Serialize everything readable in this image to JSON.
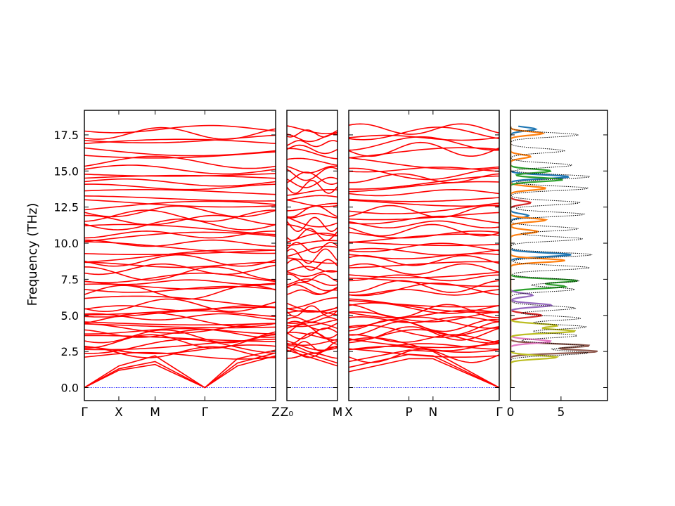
{
  "chart_data": {
    "type": "line",
    "ylabel": "Frequency (THz)",
    "ylim": [
      -0.9,
      19.2
    ],
    "yticks": [
      "0.0",
      "2.5",
      "5.0",
      "7.5",
      "10.0",
      "12.5",
      "15.0",
      "17.5"
    ],
    "band_color": "#ff0000",
    "zero_line_color": "#0000ff",
    "panels": [
      {
        "id": "panel1",
        "x_ticks": [
          {
            "label": "Γ",
            "pos": 0.0
          },
          {
            "label": "X",
            "pos": 0.18
          },
          {
            "label": "M",
            "pos": 0.37
          },
          {
            "label": "Γ",
            "pos": 0.63
          },
          {
            "label": "Z",
            "pos": 1.0
          }
        ],
        "acoustic_branches": [
          {
            "x": [
              0.0,
              0.18,
              0.37,
              0.63,
              0.8,
              1.0
            ],
            "y": [
              0.0,
              1.2,
              1.6,
              0.0,
              1.5,
              2.2
            ]
          },
          {
            "x": [
              0.0,
              0.18,
              0.37,
              0.63,
              0.8,
              1.0
            ],
            "y": [
              0.0,
              1.3,
              1.8,
              0.0,
              1.7,
              2.4
            ]
          },
          {
            "x": [
              0.0,
              0.18,
              0.37,
              0.63,
              0.8,
              1.0
            ],
            "y": [
              0.0,
              1.5,
              2.2,
              0.0,
              2.0,
              2.6
            ]
          }
        ]
      },
      {
        "id": "panel2",
        "x_ticks": [
          {
            "label": "Z₀",
            "pos": 0.0
          },
          {
            "label": "M",
            "pos": 1.0
          }
        ],
        "acoustic_branches": [
          {
            "x": [
              0.0,
              1.0
            ],
            "y": [
              2.6,
              1.5
            ]
          },
          {
            "x": [
              0.0,
              1.0
            ],
            "y": [
              2.8,
              1.7
            ]
          }
        ]
      },
      {
        "id": "panel3",
        "x_ticks": [
          {
            "label": "X",
            "pos": 0.0
          },
          {
            "label": "P",
            "pos": 0.4
          },
          {
            "label": "N",
            "pos": 0.56
          },
          {
            "label": "Γ",
            "pos": 1.0
          }
        ],
        "acoustic_branches": [
          {
            "x": [
              0.0,
              0.4,
              0.56,
              1.0
            ],
            "y": [
              1.1,
              2.0,
              2.0,
              0.0
            ]
          },
          {
            "x": [
              0.0,
              0.4,
              0.56,
              1.0
            ],
            "y": [
              1.4,
              2.3,
              2.2,
              0.0
            ]
          },
          {
            "x": [
              0.0,
              0.4,
              0.56,
              1.0
            ],
            "y": [
              1.8,
              2.6,
              2.5,
              0.0
            ]
          }
        ]
      }
    ],
    "band_center_frequencies": [
      2.2,
      2.45,
      2.65,
      2.85,
      3.0,
      3.2,
      3.4,
      3.55,
      3.75,
      3.9,
      4.1,
      4.3,
      4.5,
      4.7,
      4.9,
      5.1,
      5.3,
      5.5,
      5.7,
      5.85,
      6.6,
      6.8,
      7.0,
      7.3,
      7.6,
      7.9,
      8.2,
      8.5,
      8.8,
      9.1,
      9.4,
      9.7,
      10.0,
      10.3,
      10.6,
      10.9,
      11.3,
      11.6,
      11.9,
      12.2,
      12.5,
      12.8,
      13.1,
      13.5,
      13.9,
      14.2,
      14.5,
      14.8,
      15.1,
      15.6,
      16.2,
      16.5,
      16.9,
      17.3,
      17.6,
      17.9
    ],
    "dos": {
      "xlim": [
        0,
        9.6
      ],
      "x_ticks": [
        "0",
        "5"
      ],
      "total_color": "#000000",
      "partial_colors": [
        "#1f77b4",
        "#ff7f0e",
        "#2ca02c",
        "#d62728",
        "#9467bd",
        "#8c564b",
        "#e377c2",
        "#bcbd22"
      ],
      "total_peaks": [
        {
          "f": 2.4,
          "v": 9.0
        },
        {
          "f": 2.9,
          "v": 8.5
        },
        {
          "f": 3.6,
          "v": 7.8
        },
        {
          "f": 4.2,
          "v": 8.9
        },
        {
          "f": 4.8,
          "v": 8.2
        },
        {
          "f": 5.5,
          "v": 7.6
        },
        {
          "f": 6.8,
          "v": 7.5
        },
        {
          "f": 7.4,
          "v": 8.0
        },
        {
          "f": 8.3,
          "v": 9.2
        },
        {
          "f": 9.2,
          "v": 9.5
        },
        {
          "f": 10.3,
          "v": 8.4
        },
        {
          "f": 11.0,
          "v": 7.9
        },
        {
          "f": 12.0,
          "v": 8.6
        },
        {
          "f": 12.8,
          "v": 8.1
        },
        {
          "f": 13.8,
          "v": 9.1
        },
        {
          "f": 14.6,
          "v": 9.3
        },
        {
          "f": 15.4,
          "v": 7.2
        },
        {
          "f": 16.4,
          "v": 6.3
        },
        {
          "f": 17.5,
          "v": 7.9
        }
      ],
      "partial_peaks": [
        {
          "f": 17.6,
          "v": 3.2,
          "c": 1
        },
        {
          "f": 17.9,
          "v": 2.5,
          "c": 0
        },
        {
          "f": 16.0,
          "v": 2.0,
          "c": 1
        },
        {
          "f": 15.0,
          "v": 4.0,
          "c": 2
        },
        {
          "f": 14.6,
          "v": 5.8,
          "c": 0
        },
        {
          "f": 14.4,
          "v": 5.2,
          "c": 2
        },
        {
          "f": 13.8,
          "v": 3.5,
          "c": 1
        },
        {
          "f": 12.8,
          "v": 2.0,
          "c": 3
        },
        {
          "f": 11.6,
          "v": 3.5,
          "c": 1
        },
        {
          "f": 11.9,
          "v": 1.8,
          "c": 0
        },
        {
          "f": 10.8,
          "v": 2.7,
          "c": 1
        },
        {
          "f": 9.2,
          "v": 6.0,
          "c": 0
        },
        {
          "f": 8.8,
          "v": 5.4,
          "c": 1
        },
        {
          "f": 7.4,
          "v": 6.6,
          "c": 2
        },
        {
          "f": 7.0,
          "v": 5.4,
          "c": 2
        },
        {
          "f": 6.4,
          "v": 2.2,
          "c": 4
        },
        {
          "f": 5.7,
          "v": 4.1,
          "c": 4
        },
        {
          "f": 5.0,
          "v": 3.1,
          "c": 3
        },
        {
          "f": 4.3,
          "v": 4.6,
          "c": 7
        },
        {
          "f": 3.9,
          "v": 6.4,
          "c": 7
        },
        {
          "f": 3.2,
          "v": 4.0,
          "c": 6
        },
        {
          "f": 2.9,
          "v": 7.8,
          "c": 5
        },
        {
          "f": 2.5,
          "v": 8.6,
          "c": 5
        },
        {
          "f": 2.1,
          "v": 4.6,
          "c": 7
        }
      ]
    }
  }
}
